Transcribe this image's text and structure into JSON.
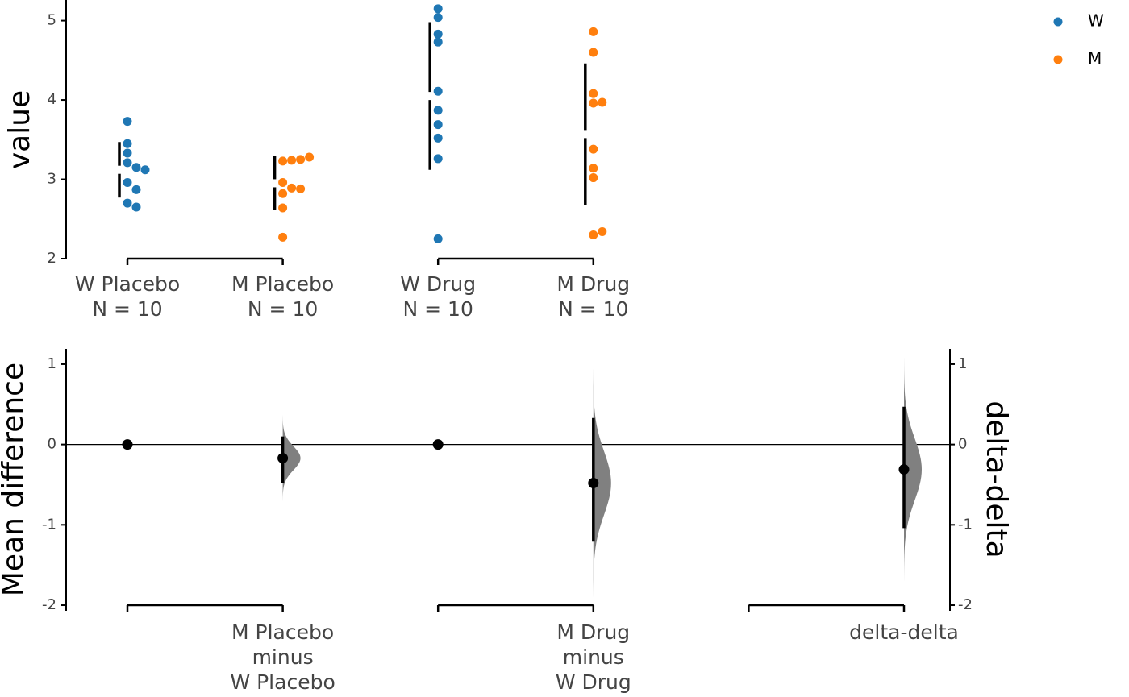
{
  "chart_data": [
    {
      "type": "swarm",
      "ylabel": "value",
      "categories": [
        [
          "W Placebo",
          "N = 10"
        ],
        [
          "M Placebo",
          "N = 10"
        ],
        [
          "W Drug",
          "N = 10"
        ],
        [
          "M Drug",
          "N = 10"
        ]
      ],
      "series": [
        {
          "name": "W",
          "color": "#1f77b4",
          "values": [
            [
              3.73,
              3.45,
              3.33,
              3.21,
              3.15,
              3.12,
              2.96,
              2.87,
              2.7,
              2.65
            ],
            null,
            [
              5.15,
              5.04,
              4.83,
              4.73,
              4.11,
              3.87,
              3.69,
              3.52,
              3.26,
              2.25
            ],
            null
          ]
        },
        {
          "name": "M",
          "color": "#ff7f0e",
          "values": [
            null,
            [
              3.23,
              3.24,
              3.25,
              3.28,
              2.96,
              2.89,
              2.88,
              2.82,
              2.64,
              2.27
            ],
            null,
            [
              4.86,
              4.6,
              4.08,
              3.96,
              3.97,
              3.38,
              3.14,
              3.02,
              2.3,
              2.34
            ]
          ]
        }
      ],
      "means": [
        3.12,
        2.95,
        4.05,
        3.57
      ],
      "sds": [
        0.35,
        0.34,
        0.93,
        0.89
      ],
      "ylim": [
        2,
        5.27
      ],
      "yticks": [
        2,
        3,
        4,
        5
      ],
      "legend": "upper right"
    },
    {
      "type": "delta",
      "ylabel": "Mean difference",
      "y2label": "delta-delta",
      "categories": [
        null,
        [
          "M Placebo",
          "minus",
          "W Placebo"
        ],
        null,
        [
          "M Drug",
          "minus",
          "W Drug"
        ],
        null,
        [
          "delta-delta"
        ]
      ],
      "values": [
        0,
        -0.17,
        0,
        -0.48,
        null,
        -0.31
      ],
      "ci_low": [
        null,
        -0.48,
        null,
        -1.21,
        null,
        -1.04
      ],
      "ci_high": [
        null,
        0.1,
        null,
        0.33,
        null,
        0.47
      ],
      "ylim": [
        -2.07,
        1.19
      ],
      "yticks": [
        -2,
        -1,
        0,
        1
      ],
      "y2lim": [
        -2.07,
        1.19
      ],
      "y2ticks": [
        -2,
        -1,
        0,
        1
      ]
    }
  ]
}
